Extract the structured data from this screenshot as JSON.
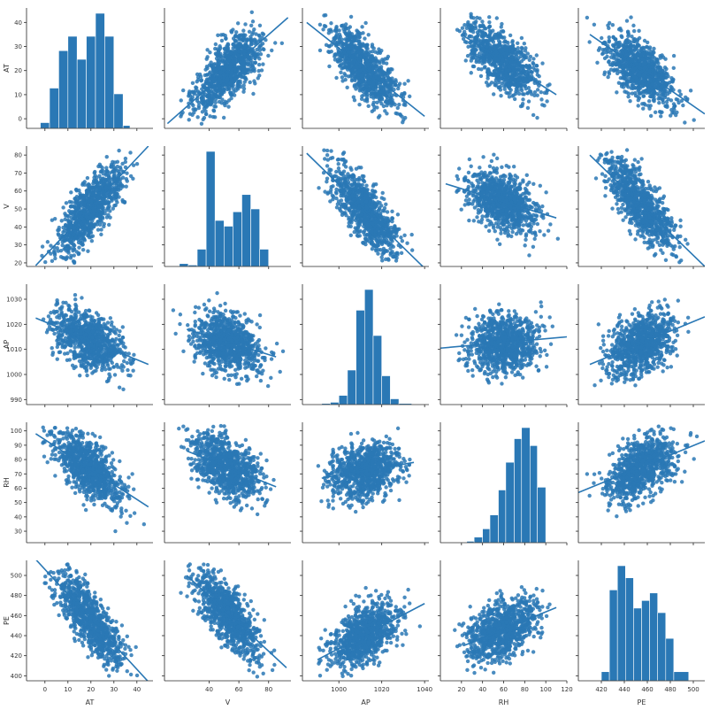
{
  "chart_data": {
    "type": "scatter",
    "variables": [
      "AT",
      "V",
      "AP",
      "RH",
      "PE"
    ],
    "color": "#2a78b5",
    "ranges": {
      "AT": [
        -4,
        46
      ],
      "V": [
        18,
        85
      ],
      "AP": [
        988,
        1036
      ],
      "RH": [
        22,
        106
      ],
      "PE": [
        395,
        515
      ]
    },
    "x_ranges": {
      "AT": [
        -8,
        47
      ],
      "V": [
        10,
        95
      ],
      "AP": [
        983,
        1042
      ],
      "RH": [
        0,
        120
      ],
      "PE": [
        400,
        510
      ]
    },
    "ticks": {
      "AT": [
        0,
        10,
        20,
        30,
        40
      ],
      "V": [
        20,
        30,
        40,
        50,
        60,
        70,
        80
      ],
      "AP": [
        990,
        1000,
        1010,
        1020,
        1030
      ],
      "RH": [
        30,
        40,
        50,
        60,
        70,
        80,
        90,
        100
      ],
      "PE": [
        400,
        420,
        440,
        460,
        480,
        500
      ]
    },
    "x_ticks": {
      "AT": [
        0,
        10,
        20,
        30,
        40
      ],
      "V": [
        40,
        60,
        80
      ],
      "AP": [
        1000,
        1020,
        1040
      ],
      "RH": [
        20,
        40,
        60,
        80,
        100,
        120
      ],
      "PE": [
        420,
        440,
        460,
        480,
        500
      ]
    },
    "regression_lines": [
      {
        "x": "AT",
        "y": "V",
        "x0": -4,
        "y0": 18.5,
        "x1": 45,
        "y1": 85
      },
      {
        "x": "AT",
        "y": "AP",
        "x0": -4,
        "y0": 1022.5,
        "x1": 45,
        "y1": 1004
      },
      {
        "x": "AT",
        "y": "RH",
        "x0": -4,
        "y0": 98,
        "x1": 45,
        "y1": 47
      },
      {
        "x": "AT",
        "y": "PE",
        "x0": -4,
        "y0": 516,
        "x1": 45,
        "y1": 394
      },
      {
        "x": "V",
        "y": "AT",
        "x0": 12,
        "y0": -2,
        "x1": 93,
        "y1": 42
      },
      {
        "x": "V",
        "y": "AP",
        "x0": 25,
        "y0": 1018,
        "x1": 85,
        "y1": 1007
      },
      {
        "x": "V",
        "y": "RH",
        "x0": 25,
        "y0": 86,
        "x1": 85,
        "y1": 61
      },
      {
        "x": "V",
        "y": "PE",
        "x0": 25,
        "y0": 500,
        "x1": 92,
        "y1": 408
      },
      {
        "x": "AP",
        "y": "AT",
        "x0": 985,
        "y0": 40,
        "x1": 1040,
        "y1": 1
      },
      {
        "x": "AP",
        "y": "V",
        "x0": 985,
        "y0": 81,
        "x1": 1040,
        "y1": 17
      },
      {
        "x": "AP",
        "y": "RH",
        "x0": 992,
        "y0": 67,
        "x1": 1035,
        "y1": 78
      },
      {
        "x": "AP",
        "y": "PE",
        "x0": 990,
        "y0": 416,
        "x1": 1040,
        "y1": 472
      },
      {
        "x": "RH",
        "y": "AT",
        "x0": 20,
        "y0": 35,
        "x1": 110,
        "y1": 10
      },
      {
        "x": "RH",
        "y": "V",
        "x0": 5,
        "y0": 64,
        "x1": 110,
        "y1": 45
      },
      {
        "x": "RH",
        "y": "AP",
        "x0": 0,
        "y0": 1010.5,
        "x1": 120,
        "y1": 1015
      },
      {
        "x": "RH",
        "y": "PE",
        "x0": 22,
        "y0": 430,
        "x1": 110,
        "y1": 468
      },
      {
        "x": "PE",
        "y": "AT",
        "x0": 410,
        "y0": 35,
        "x1": 510,
        "y1": 2
      },
      {
        "x": "PE",
        "y": "V",
        "x0": 410,
        "y0": 80,
        "x1": 510,
        "y1": 18
      },
      {
        "x": "PE",
        "y": "AP",
        "x0": 410,
        "y0": 1004,
        "x1": 510,
        "y1": 1023
      },
      {
        "x": "PE",
        "y": "RH",
        "x0": 400,
        "y0": 57,
        "x1": 510,
        "y1": 93
      }
    ],
    "histograms": {
      "AT": {
        "edges": [
          -2,
          2,
          6,
          10,
          14,
          18,
          22,
          26,
          30,
          34,
          37
        ],
        "counts": [
          2,
          14,
          27,
          32,
          24,
          32,
          40,
          32,
          12,
          1
        ]
      },
      "V": {
        "edges": [
          20,
          26,
          32,
          38,
          44,
          50,
          56,
          62,
          68,
          74,
          80
        ],
        "counts": [
          2,
          1,
          12,
          80,
          32,
          28,
          38,
          50,
          40,
          12
        ]
      },
      "AP": {
        "edges": [
          992,
          996,
          1000,
          1004,
          1008,
          1012,
          1016,
          1020,
          1024,
          1028,
          1034
        ],
        "counts": [
          1,
          2,
          8,
          30,
          82,
          100,
          60,
          25,
          5,
          1
        ]
      },
      "RH": {
        "edges": [
          25,
          32,
          40,
          47,
          55,
          62,
          70,
          77,
          85,
          92,
          100
        ],
        "counts": [
          1,
          4,
          10,
          20,
          38,
          58,
          75,
          83,
          70,
          40
        ]
      },
      "PE": {
        "edges": [
          420,
          427,
          434,
          441,
          448,
          455,
          462,
          469,
          476,
          483,
          496
        ],
        "counts": [
          6,
          60,
          76,
          68,
          48,
          53,
          58,
          45,
          28,
          6
        ]
      }
    }
  }
}
